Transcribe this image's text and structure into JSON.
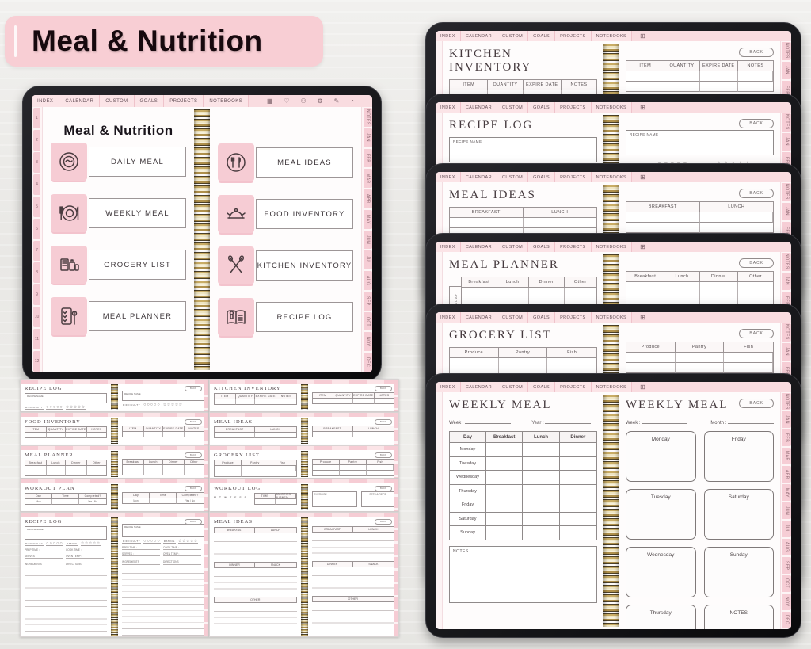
{
  "colors": {
    "pink": "#f8ced4",
    "pinksoft": "#f9dce0",
    "pinktab": "#f4c3cb",
    "ink": "#201418"
  },
  "banner": {
    "title": "Meal & Nutrition"
  },
  "nav": {
    "tabs": [
      "INDEX",
      "CALENDAR",
      "CUSTOM",
      "GOALS",
      "PROJECTS",
      "NOTEBOOKS"
    ]
  },
  "toolbar_icons": [
    {
      "name": "grid-icon",
      "glyph": "▦"
    },
    {
      "name": "heart-icon",
      "glyph": "♡"
    },
    {
      "name": "users-icon",
      "glyph": "⚇"
    },
    {
      "name": "gear-icon",
      "glyph": "⚙"
    },
    {
      "name": "pencil-icon",
      "glyph": "✎"
    },
    {
      "name": "clock-icon",
      "glyph": "◔"
    }
  ],
  "grid_icon": "⊞",
  "back_label": "BACK",
  "index_page": {
    "title": "Meal &  Nutrition",
    "buttons_left": [
      {
        "label": "DAILY MEAL",
        "icon": "daily-meal-plate-icon"
      },
      {
        "label": "WEEKLY MEAL",
        "icon": "weekly-meal-plate-icon"
      },
      {
        "label": "GROCERY LIST",
        "icon": "grocery-bag-icon"
      },
      {
        "label": "MEAL PLANNER",
        "icon": "meal-checklist-icon"
      }
    ],
    "buttons_right": [
      {
        "label": "MEAL IDEAS",
        "icon": "cutlery-plate-icon"
      },
      {
        "label": "FOOD INVENTORY",
        "icon": "covered-dish-icon"
      },
      {
        "label": "KITCHEN INVENTORY",
        "icon": "kitchen-utensils-icon"
      },
      {
        "label": "RECIPE LOG",
        "icon": "recipe-book-icon"
      }
    ],
    "left_tabs": [
      "1",
      "2",
      "3",
      "4",
      "5",
      "6",
      "7",
      "8",
      "9",
      "10",
      "11",
      "12"
    ],
    "right_tabs": [
      "NOTES",
      "JAN",
      "FEB",
      "MAR",
      "APR",
      "MAY",
      "JUN",
      "JUL",
      "AUG",
      "SEP",
      "OCT",
      "NOV",
      "DEC"
    ]
  },
  "tablets": {
    "kitchen_inventory": {
      "title": "KITCHEN INVENTORY",
      "headers": [
        "ITEM",
        "QUANTITY",
        "EXPIRE DATE",
        "NOTES"
      ]
    },
    "recipe_log": {
      "title": "RECIPE LOG",
      "recipe_name": "RECIPE NAME",
      "difficulty": "DIFFICULTY",
      "rating": "RATING",
      "circles": "○○○○○",
      "stars": "☆☆☆☆☆"
    },
    "meal_ideas": {
      "title": "MEAL IDEAS",
      "headers": [
        "BREAKFAST",
        "LUNCH"
      ]
    },
    "meal_planner": {
      "title": "MEAL PLANNER",
      "headers": [
        "Breakfast",
        "Lunch",
        "Dinner",
        "Other"
      ],
      "row_label": "MONDAY"
    },
    "grocery_list": {
      "title": "GROCERY LIST",
      "headers": [
        "Produce",
        "Pantry",
        "Fish"
      ]
    },
    "weekly_meal": {
      "title": "WEEKLY MEAL",
      "week_label": "Week :",
      "year_label": "Year :",
      "month_label": "Month :",
      "table_headers": [
        "Day",
        "Breakfast",
        "Lunch",
        "Dinner"
      ],
      "days": [
        "Monday",
        "Tuesday",
        "Wednesday",
        "Thursday",
        "Friday",
        "Saturday",
        "Sunday"
      ],
      "notes_label": "NOTES",
      "right_boxes": [
        "Monday",
        "Friday",
        "Tuesday",
        "Saturday",
        "Wednesday",
        "Sunday",
        "Thursday",
        "NOTES"
      ]
    }
  },
  "previews": {
    "left": [
      {
        "title": "RECIPE LOG",
        "recipe_name": "RECIPE NAME",
        "difficulty": "DIFFICULTY",
        "rating": "RATING",
        "circles": "○○○○○",
        "stars": "☆☆☆☆☆"
      },
      {
        "title": "FOOD INVENTORY",
        "headers": [
          "ITEM",
          "QUANTITY",
          "EXPIRE DATE",
          "NOTES"
        ]
      },
      {
        "title": "MEAL PLANNER",
        "headers": [
          "Breakfast",
          "Lunch",
          "Dinner",
          "Other"
        ]
      },
      {
        "title": "WORKOUT PLAN",
        "headers": [
          "Day",
          "Time",
          "Completed?"
        ],
        "row": [
          "Mon",
          "",
          "Yes | No"
        ]
      },
      {
        "title": "RECIPE LOG",
        "recipe_name": "RECIPE NAME",
        "difficulty": "DIFFICULTY",
        "rating": "RATING",
        "circles": "○○○○○",
        "stars": "☆☆☆☆☆",
        "prep": "PREP TIME :",
        "cook": "COOK TIME :",
        "serves": "SERVES :",
        "oven": "OVEN TEMP :",
        "ingredients": "INGREDIENTS",
        "directions": "DIRECTIONS"
      }
    ],
    "right": [
      {
        "title": "KITCHEN INVENTORY",
        "headers": [
          "ITEM",
          "QUANTITY",
          "EXPIRE DATE",
          "NOTES"
        ]
      },
      {
        "title": "MEAL IDEAS",
        "headers": [
          "BREAKFAST",
          "LUNCH"
        ]
      },
      {
        "title": "GROCERY LIST",
        "headers": [
          "Produce",
          "Pantry",
          "Fish"
        ]
      },
      {
        "title": "WORKOUT LOG",
        "day_letters": "M T W T F S S",
        "time_label": "TIME",
        "calories_label": "CALORIES BURNED",
        "exercise_label": "EXERCISE",
        "sets_label": "SETS & REPS"
      },
      {
        "title": "MEAL IDEAS",
        "sections_a": [
          "BREAKFAST",
          "LUNCH"
        ],
        "sections_b": [
          "DINNER",
          "SNACK"
        ],
        "other_label": "OTHER"
      }
    ]
  }
}
